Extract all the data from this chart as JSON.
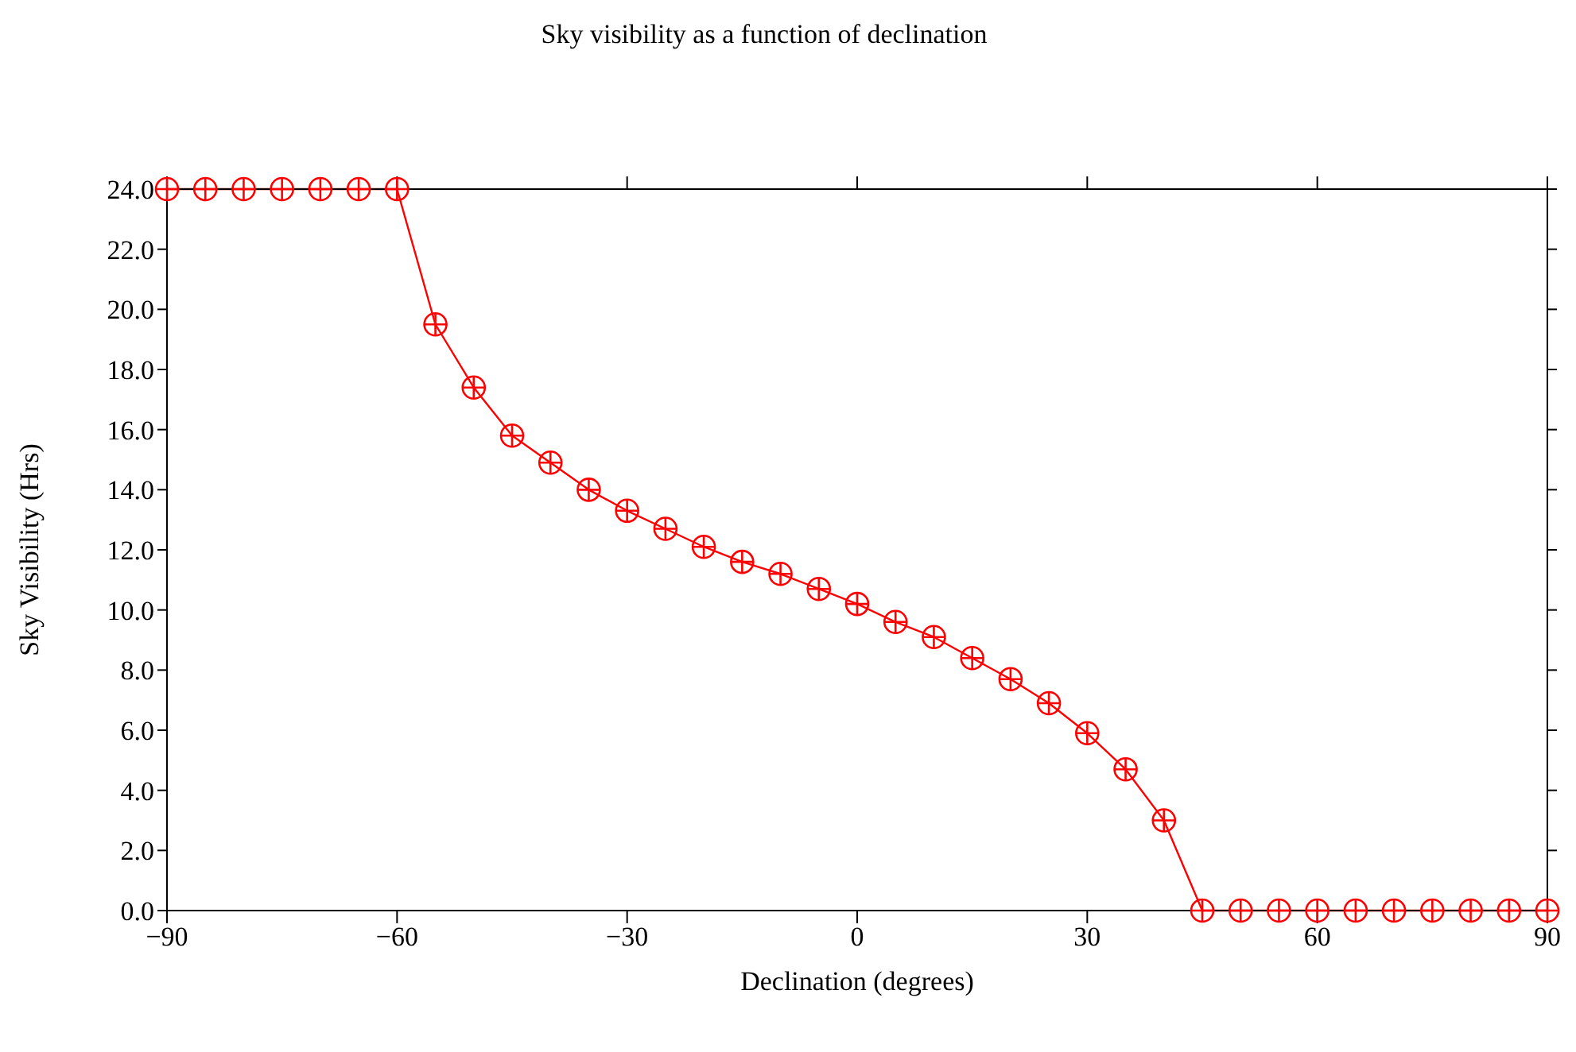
{
  "chart_data": {
    "type": "line",
    "title": "Sky visibility as a function of declination",
    "xlabel": "Declination (degrees)",
    "ylabel": "Sky Visibility (Hrs)",
    "x": [
      -90,
      -85,
      -80,
      -75,
      -70,
      -65,
      -60,
      -55,
      -50,
      -45,
      -40,
      -35,
      -30,
      -25,
      -20,
      -15,
      -10,
      -5,
      0,
      5,
      10,
      15,
      20,
      25,
      30,
      35,
      40,
      45,
      50,
      55,
      60,
      65,
      70,
      75,
      80,
      85,
      90
    ],
    "series": [
      {
        "color": "#ff0000",
        "values": [
          24,
          24,
          24,
          24,
          24,
          24,
          24,
          19.5,
          17.4,
          15.8,
          14.9,
          14.0,
          13.3,
          12.7,
          12.1,
          11.6,
          11.2,
          10.7,
          10.2,
          9.6,
          9.1,
          8.4,
          7.7,
          6.9,
          5.9,
          4.7,
          3.0,
          0,
          0,
          0,
          0,
          0,
          0,
          0,
          0,
          0,
          0
        ]
      }
    ],
    "xlim": [
      -90,
      90
    ],
    "xticks": [
      {
        "value": -90,
        "label": "−90"
      },
      {
        "value": -60,
        "label": "−60"
      },
      {
        "value": -30,
        "label": "−30"
      },
      0,
      30,
      60,
      90
    ],
    "ylim": [
      0,
      24
    ],
    "yticks": [
      {
        "value": 0,
        "label": "0.0"
      },
      {
        "value": 2,
        "label": "2.0"
      },
      {
        "value": 4,
        "label": "4.0"
      },
      {
        "value": 6,
        "label": "6.0"
      },
      {
        "value": 8,
        "label": "8.0"
      },
      {
        "value": 10,
        "label": "10.0"
      },
      {
        "value": 12,
        "label": "12.0"
      },
      {
        "value": 14,
        "label": "14.0"
      },
      {
        "value": 16,
        "label": "16.0"
      },
      {
        "value": 18,
        "label": "18.0"
      },
      {
        "value": 20,
        "label": "20.0"
      },
      {
        "value": 22,
        "label": "22.0"
      },
      {
        "value": 24,
        "label": "24.0"
      }
    ],
    "grid": false,
    "legend": false,
    "marker": "circle",
    "line_style": "solid"
  }
}
